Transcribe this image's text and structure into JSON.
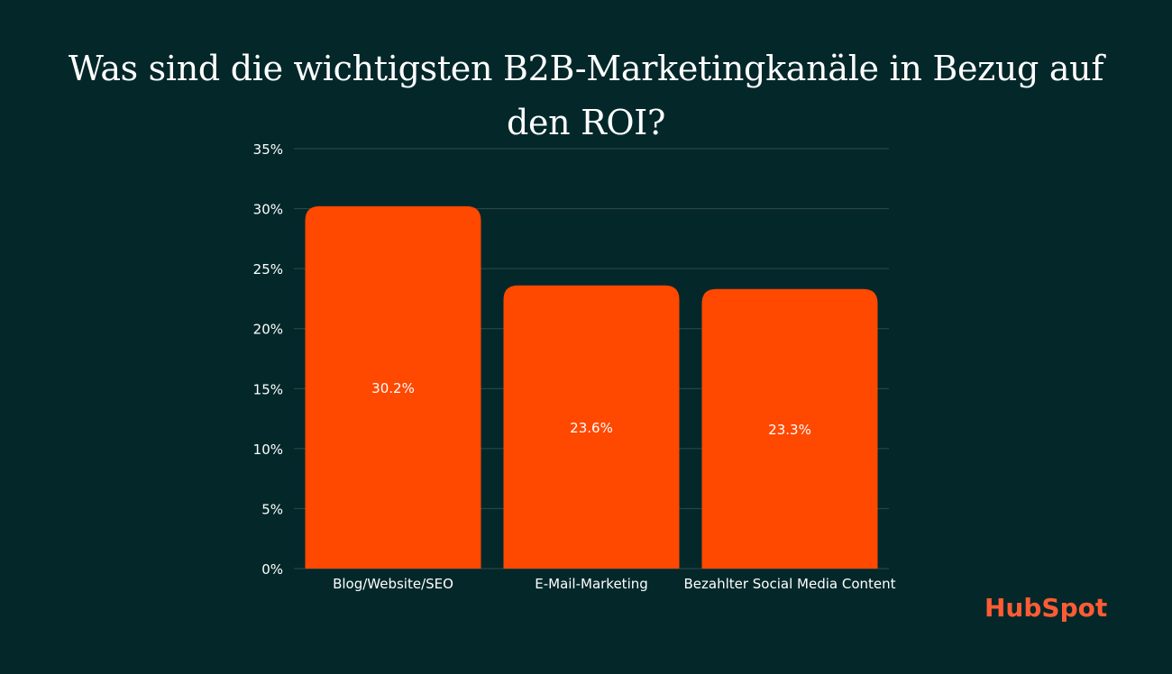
{
  "chart_data": {
    "type": "bar",
    "title": "Was sind die wichtigsten B2B-Marketingkanäle in Bezug auf den ROI?",
    "categories": [
      "Blog/Website/SEO",
      "E-Mail-Marketing",
      "Bezahlter Social Media Content"
    ],
    "values": [
      30.2,
      23.6,
      23.3
    ],
    "value_labels": [
      "30.2%",
      "23.6%",
      "23.3%"
    ],
    "ylim": [
      0,
      35
    ],
    "yticks": [
      0,
      5,
      10,
      15,
      20,
      25,
      30,
      35
    ],
    "ytick_labels": [
      "0%",
      "5%",
      "10%",
      "15%",
      "20%",
      "25%",
      "30%",
      "35%"
    ],
    "xlabel": "",
    "ylabel": "",
    "grid": true,
    "legend": "none",
    "colors": {
      "background": "#04282a",
      "bar": "#ff4800",
      "grid": "#2f4a4b",
      "text": "#ffffff"
    }
  },
  "logo": {
    "text": "HubSpot",
    "color": "#ff5c35"
  }
}
